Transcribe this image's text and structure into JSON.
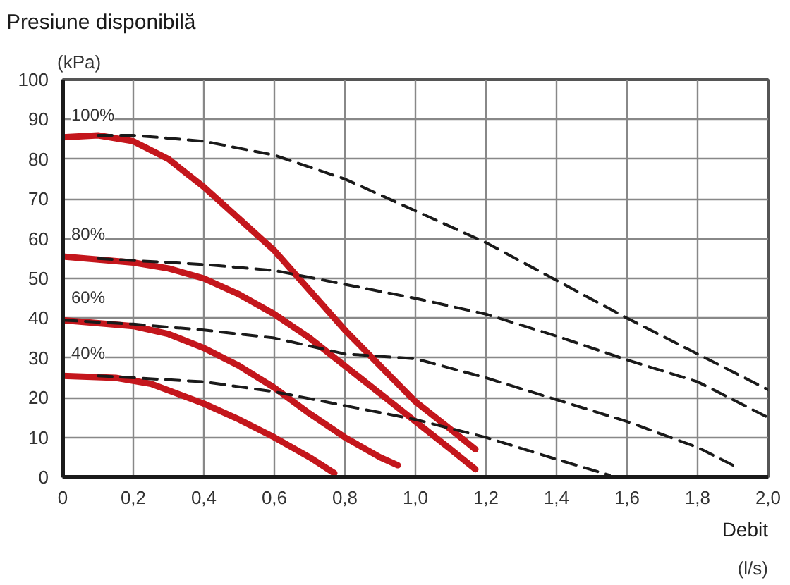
{
  "chart_data": {
    "type": "line",
    "title": "Presiune disponibilă",
    "ylabel": "(kPa)",
    "xlabel": "Debit\n(l/s)",
    "series": [
      {
        "name": "100%",
        "color": "#c4161c",
        "line_style": "solid",
        "x": [
          0,
          0.1,
          0.2,
          0.3,
          0.4,
          0.5,
          0.6,
          0.7,
          0.8,
          0.9,
          1.0,
          1.1,
          1.17
        ],
        "values": [
          85.5,
          86,
          84.5,
          80,
          73,
          65,
          57,
          47,
          37,
          28,
          19,
          12,
          7
        ]
      },
      {
        "name": "80%",
        "color": "#c4161c",
        "line_style": "solid",
        "x": [
          0,
          0.2,
          0.3,
          0.4,
          0.5,
          0.6,
          0.7,
          0.8,
          0.9,
          1.0,
          1.1,
          1.17
        ],
        "values": [
          55.5,
          54,
          52.5,
          50,
          46,
          41,
          35,
          28,
          21,
          14,
          7,
          2
        ]
      },
      {
        "name": "60%",
        "color": "#c4161c",
        "line_style": "solid",
        "x": [
          0,
          0.2,
          0.3,
          0.4,
          0.5,
          0.6,
          0.7,
          0.8,
          0.9,
          0.95
        ],
        "values": [
          39.5,
          38,
          36,
          32.5,
          28,
          22.5,
          16,
          10,
          5,
          3
        ]
      },
      {
        "name": "40%",
        "color": "#c4161c",
        "line_style": "solid",
        "x": [
          0,
          0.15,
          0.25,
          0.4,
          0.5,
          0.6,
          0.7,
          0.77
        ],
        "values": [
          25.5,
          25,
          23.5,
          18.5,
          14.5,
          10,
          5,
          1
        ]
      },
      {
        "color": "#1a1a1a",
        "line_style": "dashed",
        "x": [
          0.1,
          0.2,
          0.4,
          0.6,
          0.8,
          1.0,
          1.2,
          1.4,
          1.6,
          1.8,
          2.0
        ],
        "values": [
          86,
          86,
          84.5,
          81,
          75,
          67,
          59,
          49.5,
          40,
          31,
          22
        ]
      },
      {
        "color": "#1a1a1a",
        "line_style": "dashed",
        "x": [
          0.1,
          0.4,
          0.6,
          0.8,
          1.0,
          1.2,
          1.4,
          1.6,
          1.8,
          2.0
        ],
        "values": [
          55,
          53.5,
          52,
          48.5,
          45,
          41,
          35.5,
          29.5,
          24,
          15
        ]
      },
      {
        "color": "#1a1a1a",
        "line_style": "dashed",
        "x": [
          0,
          0.2,
          0.4,
          0.6,
          0.8,
          1.0,
          1.2,
          1.4,
          1.6,
          1.8,
          1.9
        ],
        "values": [
          39.5,
          38.5,
          37,
          35,
          31,
          29.8,
          25,
          19.5,
          14,
          7.5,
          3
        ]
      },
      {
        "color": "#1a1a1a",
        "line_style": "dashed",
        "x": [
          0.1,
          0.4,
          0.6,
          0.8,
          1.0,
          1.2,
          1.4,
          1.55
        ],
        "values": [
          25.5,
          24,
          21.5,
          18,
          14.5,
          10,
          4.5,
          0.5
        ]
      }
    ],
    "xlim": [
      0,
      2.0
    ],
    "ylim": [
      0,
      100
    ],
    "xticks": [
      0,
      {
        "value": 0.2,
        "label": "0,2"
      },
      {
        "value": 0.4,
        "label": "0,4"
      },
      {
        "value": 0.6,
        "label": "0,6"
      },
      {
        "value": 0.8,
        "label": "0,8"
      },
      {
        "value": 1.0,
        "label": "1,0"
      },
      {
        "value": 1.2,
        "label": "1,2"
      },
      {
        "value": 1.4,
        "label": "1,4"
      },
      {
        "value": 1.6,
        "label": "1,6"
      },
      {
        "value": 1.8,
        "label": "1,8"
      },
      {
        "value": 2.0,
        "label": "2,0"
      }
    ],
    "yticks": [
      0,
      10,
      20,
      30,
      40,
      50,
      60,
      70,
      80,
      90,
      100
    ],
    "grid": true,
    "marker": "none"
  }
}
